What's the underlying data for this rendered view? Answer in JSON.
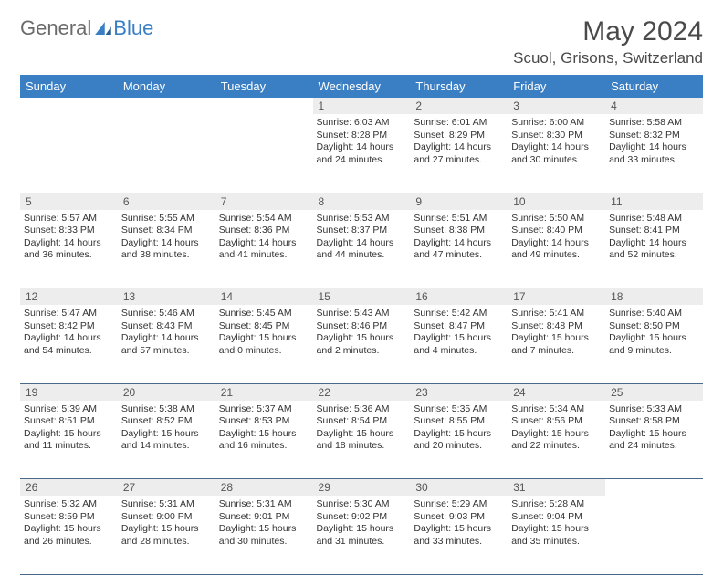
{
  "logo": {
    "text1": "General",
    "text2": "Blue"
  },
  "title": "May 2024",
  "location": "Scuol, Grisons, Switzerland",
  "colors": {
    "header_bg": "#3a7fc4",
    "header_text": "#ffffff",
    "daynum_bg": "#ededed",
    "border": "#4a6a8a",
    "logo_gray": "#6b6b6b",
    "logo_blue": "#3a7fc4"
  },
  "day_headers": [
    "Sunday",
    "Monday",
    "Tuesday",
    "Wednesday",
    "Thursday",
    "Friday",
    "Saturday"
  ],
  "weeks": [
    {
      "nums": [
        "",
        "",
        "",
        "1",
        "2",
        "3",
        "4"
      ],
      "cells": [
        null,
        null,
        null,
        {
          "sunrise": "6:03 AM",
          "sunset": "8:28 PM",
          "daylight": "14 hours and 24 minutes."
        },
        {
          "sunrise": "6:01 AM",
          "sunset": "8:29 PM",
          "daylight": "14 hours and 27 minutes."
        },
        {
          "sunrise": "6:00 AM",
          "sunset": "8:30 PM",
          "daylight": "14 hours and 30 minutes."
        },
        {
          "sunrise": "5:58 AM",
          "sunset": "8:32 PM",
          "daylight": "14 hours and 33 minutes."
        }
      ]
    },
    {
      "nums": [
        "5",
        "6",
        "7",
        "8",
        "9",
        "10",
        "11"
      ],
      "cells": [
        {
          "sunrise": "5:57 AM",
          "sunset": "8:33 PM",
          "daylight": "14 hours and 36 minutes."
        },
        {
          "sunrise": "5:55 AM",
          "sunset": "8:34 PM",
          "daylight": "14 hours and 38 minutes."
        },
        {
          "sunrise": "5:54 AM",
          "sunset": "8:36 PM",
          "daylight": "14 hours and 41 minutes."
        },
        {
          "sunrise": "5:53 AM",
          "sunset": "8:37 PM",
          "daylight": "14 hours and 44 minutes."
        },
        {
          "sunrise": "5:51 AM",
          "sunset": "8:38 PM",
          "daylight": "14 hours and 47 minutes."
        },
        {
          "sunrise": "5:50 AM",
          "sunset": "8:40 PM",
          "daylight": "14 hours and 49 minutes."
        },
        {
          "sunrise": "5:48 AM",
          "sunset": "8:41 PM",
          "daylight": "14 hours and 52 minutes."
        }
      ]
    },
    {
      "nums": [
        "12",
        "13",
        "14",
        "15",
        "16",
        "17",
        "18"
      ],
      "cells": [
        {
          "sunrise": "5:47 AM",
          "sunset": "8:42 PM",
          "daylight": "14 hours and 54 minutes."
        },
        {
          "sunrise": "5:46 AM",
          "sunset": "8:43 PM",
          "daylight": "14 hours and 57 minutes."
        },
        {
          "sunrise": "5:45 AM",
          "sunset": "8:45 PM",
          "daylight": "15 hours and 0 minutes."
        },
        {
          "sunrise": "5:43 AM",
          "sunset": "8:46 PM",
          "daylight": "15 hours and 2 minutes."
        },
        {
          "sunrise": "5:42 AM",
          "sunset": "8:47 PM",
          "daylight": "15 hours and 4 minutes."
        },
        {
          "sunrise": "5:41 AM",
          "sunset": "8:48 PM",
          "daylight": "15 hours and 7 minutes."
        },
        {
          "sunrise": "5:40 AM",
          "sunset": "8:50 PM",
          "daylight": "15 hours and 9 minutes."
        }
      ]
    },
    {
      "nums": [
        "19",
        "20",
        "21",
        "22",
        "23",
        "24",
        "25"
      ],
      "cells": [
        {
          "sunrise": "5:39 AM",
          "sunset": "8:51 PM",
          "daylight": "15 hours and 11 minutes."
        },
        {
          "sunrise": "5:38 AM",
          "sunset": "8:52 PM",
          "daylight": "15 hours and 14 minutes."
        },
        {
          "sunrise": "5:37 AM",
          "sunset": "8:53 PM",
          "daylight": "15 hours and 16 minutes."
        },
        {
          "sunrise": "5:36 AM",
          "sunset": "8:54 PM",
          "daylight": "15 hours and 18 minutes."
        },
        {
          "sunrise": "5:35 AM",
          "sunset": "8:55 PM",
          "daylight": "15 hours and 20 minutes."
        },
        {
          "sunrise": "5:34 AM",
          "sunset": "8:56 PM",
          "daylight": "15 hours and 22 minutes."
        },
        {
          "sunrise": "5:33 AM",
          "sunset": "8:58 PM",
          "daylight": "15 hours and 24 minutes."
        }
      ]
    },
    {
      "nums": [
        "26",
        "27",
        "28",
        "29",
        "30",
        "31",
        ""
      ],
      "cells": [
        {
          "sunrise": "5:32 AM",
          "sunset": "8:59 PM",
          "daylight": "15 hours and 26 minutes."
        },
        {
          "sunrise": "5:31 AM",
          "sunset": "9:00 PM",
          "daylight": "15 hours and 28 minutes."
        },
        {
          "sunrise": "5:31 AM",
          "sunset": "9:01 PM",
          "daylight": "15 hours and 30 minutes."
        },
        {
          "sunrise": "5:30 AM",
          "sunset": "9:02 PM",
          "daylight": "15 hours and 31 minutes."
        },
        {
          "sunrise": "5:29 AM",
          "sunset": "9:03 PM",
          "daylight": "15 hours and 33 minutes."
        },
        {
          "sunrise": "5:28 AM",
          "sunset": "9:04 PM",
          "daylight": "15 hours and 35 minutes."
        },
        null
      ]
    }
  ],
  "labels": {
    "sunrise": "Sunrise:",
    "sunset": "Sunset:",
    "daylight": "Daylight:"
  }
}
